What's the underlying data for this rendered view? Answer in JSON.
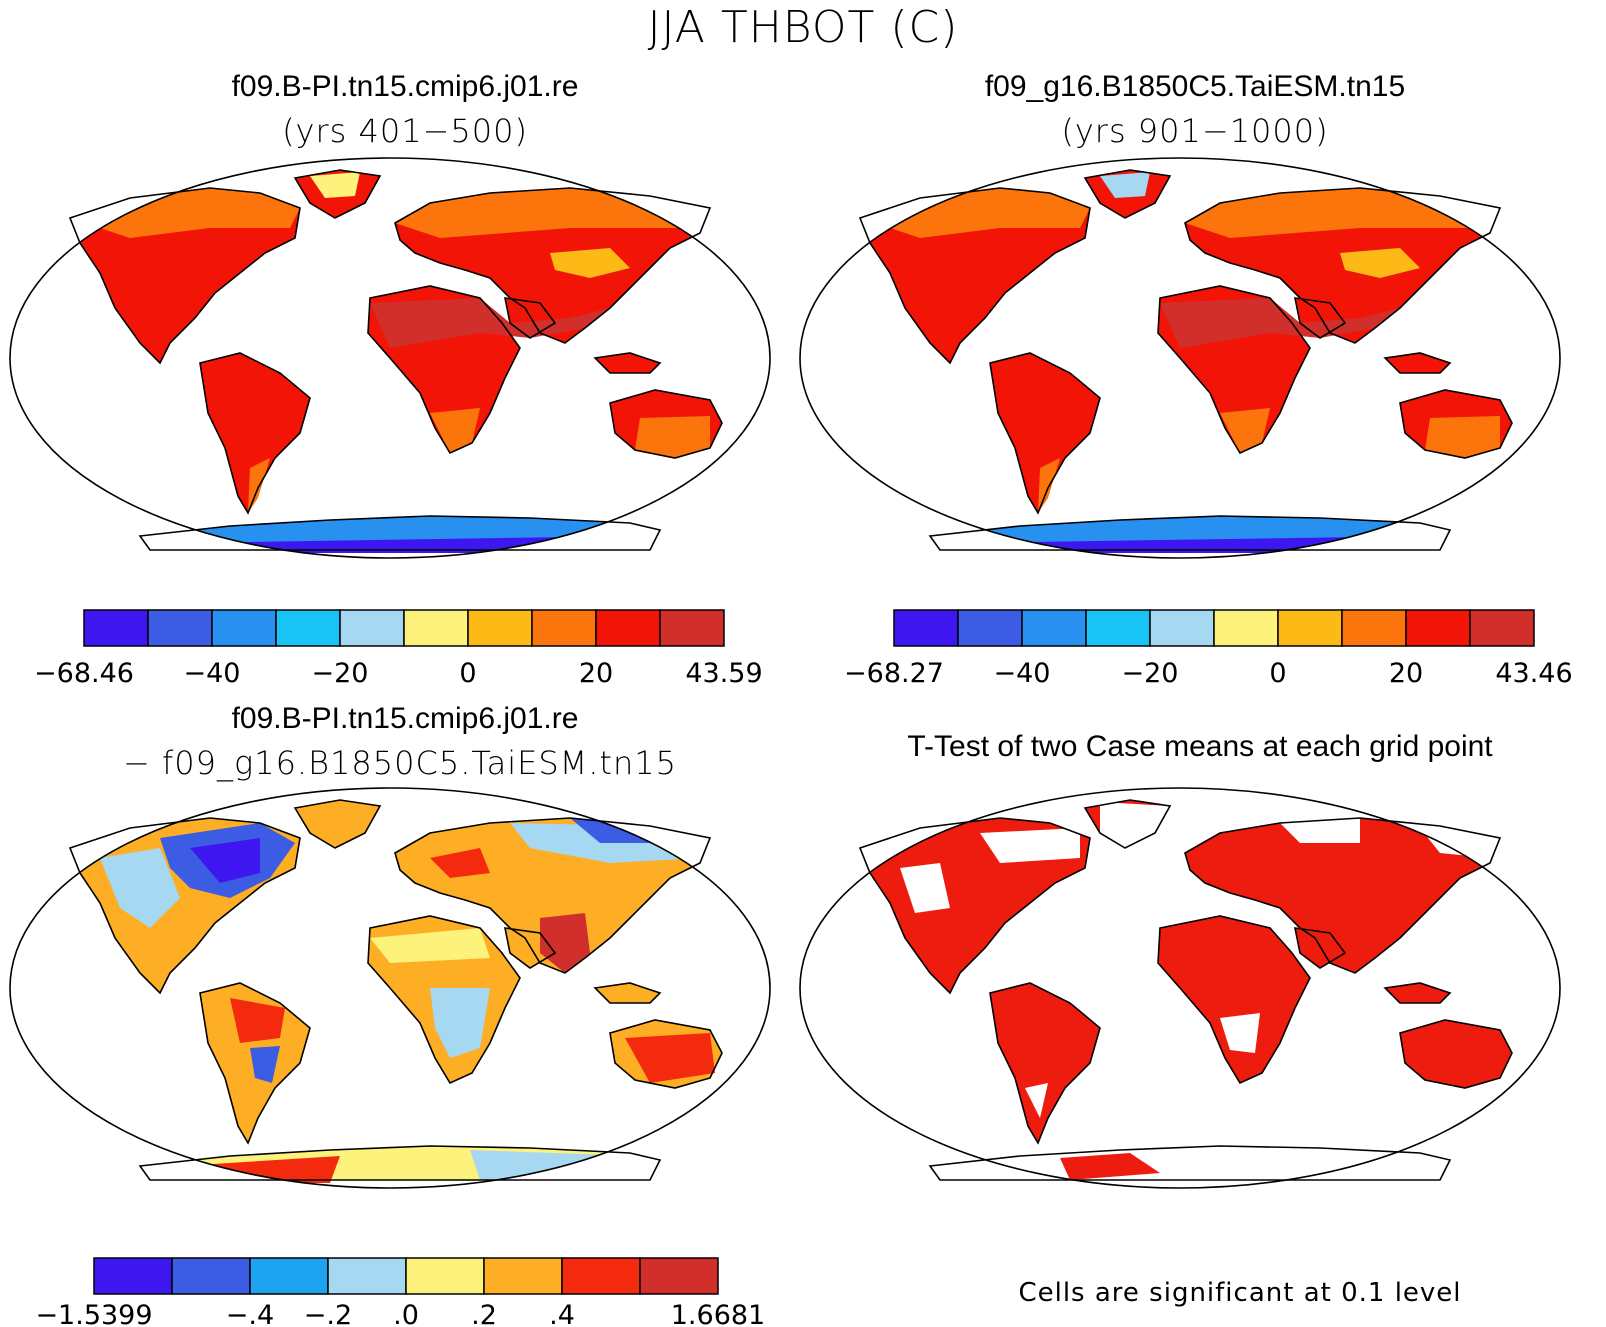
{
  "figure": {
    "title": "JJA THBOT (C)",
    "colors": {
      "land": "#ee1c0e",
      "ocean": "#ffffff",
      "coast": "#000000"
    }
  },
  "panels": [
    {
      "id": "top-left",
      "title": "f09.B-PI.tn15.cmip6.j01.re",
      "subtitle": "(yrs 401−500)",
      "colorbar": {
        "colors": [
          "#3e17f0",
          "#3c5de3",
          "#2891f0",
          "#18c3f5",
          "#a6d8f2",
          "#fdf37c",
          "#fdb915",
          "#fc750c",
          "#f21507",
          "#d02f2c"
        ],
        "labels": [
          "−68.46",
          "−40",
          "−20",
          "0",
          "20",
          "43.59"
        ]
      }
    },
    {
      "id": "top-right",
      "title": "f09_g16.B1850C5.TaiESM.tn15",
      "subtitle": "(yrs 901−1000)",
      "colorbar": {
        "colors": [
          "#3e17f0",
          "#3c5de3",
          "#2891f0",
          "#18c3f5",
          "#a6d8f2",
          "#fdf37c",
          "#fdb915",
          "#fc750c",
          "#f21507",
          "#d02f2c"
        ],
        "labels": [
          "−68.27",
          "−40",
          "−20",
          "0",
          "20",
          "43.46"
        ]
      }
    },
    {
      "id": "bottom-left",
      "title": "f09.B-PI.tn15.cmip6.j01.re",
      "subtitle": "− f09_g16.B1850C5.TaiESM.tn15",
      "colorbar": {
        "colors": [
          "#3e17f0",
          "#3c5de3",
          "#1da3f0",
          "#a6d8f2",
          "#fdf37c",
          "#fdae25",
          "#f42a0e",
          "#d02f2c"
        ],
        "labels": [
          "−1.5399",
          "−.4",
          "−.2",
          ".0",
          ".2",
          ".4",
          "1.6681"
        ]
      }
    },
    {
      "id": "bottom-right",
      "title": "T-Test of two Case means at each grid point",
      "footnote": "Cells are significant at 0.1 level"
    }
  ]
}
